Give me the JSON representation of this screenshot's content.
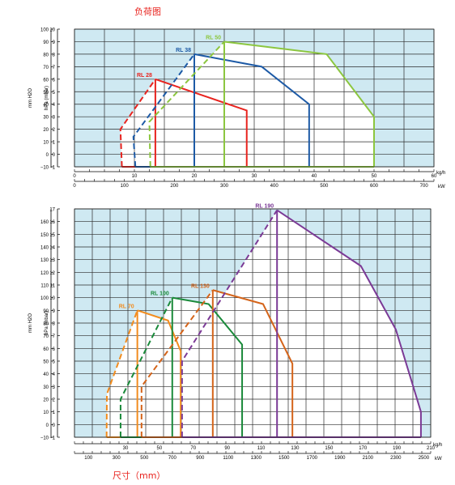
{
  "headings": {
    "top": "负荷图",
    "bottom": "尺寸（mm）"
  },
  "chart_data": [
    {
      "type": "line",
      "background": "#cfe9f2",
      "series_lines_dashed_on_left_boundary": true,
      "left_axis_1": {
        "label": "mm H2O",
        "ticks": [
          "−10",
          "0",
          "10",
          "20",
          "30",
          "40",
          "50",
          "60",
          "70",
          "80",
          "90",
          "100"
        ],
        "range": [
          -10,
          100
        ]
      },
      "left_axis_2": {
        "label": "hPa (mbar)",
        "ticks": [
          "−1",
          "0",
          "1",
          "2",
          "3",
          "4",
          "5",
          "6",
          "7",
          "8",
          "9",
          "10"
        ],
        "range": [
          -1,
          10
        ]
      },
      "bottom_axis_1": {
        "unit": "kg/h",
        "ticks": [
          "0",
          "10",
          "20",
          "30",
          "40",
          "50",
          "60"
        ]
      },
      "bottom_axis_2": {
        "unit": "kW",
        "ticks": [
          "0",
          "100",
          "200",
          "300",
          "400",
          "500",
          "600",
          "700"
        ],
        "range": [
          0,
          720
        ]
      },
      "series": [
        {
          "name": "RL 28",
          "color": "#e8231e",
          "points_kw_hpa": [
            [
              95,
              -1
            ],
            [
              92,
              2
            ],
            [
              162,
              6
            ],
            [
              345,
              3.5
            ],
            [
              345,
              -1
            ]
          ],
          "inner_line_kw": 162
        },
        {
          "name": "RL 38",
          "color": "#1d5aa6",
          "points_kw_hpa": [
            [
              122,
              -1
            ],
            [
              118,
              1.4
            ],
            [
              240,
              8
            ],
            [
              375,
              7
            ],
            [
              470,
              4
            ],
            [
              470,
              -1
            ]
          ],
          "inner_line_kw": 240
        },
        {
          "name": "RL 50",
          "color": "#8cc63f",
          "points_kw_hpa": [
            [
              152,
              -1
            ],
            [
              150,
              2.6
            ],
            [
              300,
              9
            ],
            [
              505,
              8
            ],
            [
              600,
              3
            ],
            [
              600,
              -1
            ]
          ],
          "inner_line_kw": 300
        }
      ]
    },
    {
      "type": "line",
      "background": "#cfe9f2",
      "series_lines_dashed_on_left_boundary": true,
      "left_axis_1": {
        "label": "mm H2O",
        "ticks": [
          "−10",
          "0",
          "10",
          "20",
          "30",
          "40",
          "50",
          "60",
          "70",
          "80",
          "90",
          "100",
          "110",
          "120",
          "130",
          "140",
          "150",
          "160"
        ]
      },
      "left_axis_2": {
        "label": "hPa (mbar)",
        "ticks": [
          "−1",
          "0",
          "1",
          "2",
          "3",
          "4",
          "5",
          "6",
          "7",
          "8",
          "9",
          "10",
          "11",
          "12",
          "13",
          "14",
          "15",
          "16",
          "17"
        ],
        "range": [
          -1,
          17
        ]
      },
      "bottom_axis_1": {
        "unit": "kg/h",
        "ticks": [
          "30",
          "50",
          "70",
          "90",
          "110",
          "130",
          "150",
          "170",
          "190",
          "210"
        ]
      },
      "bottom_axis_2": {
        "unit": "kW",
        "ticks": [
          "100",
          "300",
          "500",
          "700",
          "900",
          "1100",
          "1300",
          "1500",
          "1700",
          "1900",
          "2100",
          "2300",
          "2500"
        ],
        "range": [
          0,
          2550
        ]
      },
      "series": [
        {
          "name": "RL 70",
          "color": "#f28c1e",
          "points_kw_hpa": [
            [
              230,
              -1
            ],
            [
              232,
              2.4
            ],
            [
              450,
              9
            ],
            [
              670,
              8.2
            ],
            [
              760,
              5.8
            ],
            [
              760,
              -1
            ]
          ],
          "inner_line_kw": 450
        },
        {
          "name": "RL 100",
          "color": "#1a8a3a",
          "points_kw_hpa": [
            [
              330,
              -1
            ],
            [
              330,
              2
            ],
            [
              700,
              10
            ],
            [
              960,
              9.5
            ],
            [
              1200,
              6.3
            ],
            [
              1200,
              -1
            ]
          ],
          "inner_line_kw": 700
        },
        {
          "name": "RL 130",
          "color": "#d4641a",
          "points_kw_hpa": [
            [
              480,
              -1
            ],
            [
              480,
              3
            ],
            [
              990,
              10.6
            ],
            [
              1350,
              9.5
            ],
            [
              1560,
              4.8
            ],
            [
              1560,
              -1
            ]
          ],
          "inner_line_kw": 990
        },
        {
          "name": "RL 190",
          "color": "#7b3a96",
          "points_kw_hpa": [
            [
              770,
              -1
            ],
            [
              770,
              5
            ],
            [
              1450,
              16.9
            ],
            [
              2050,
              12.5
            ],
            [
              2300,
              7.5
            ],
            [
              2480,
              1
            ],
            [
              2480,
              -1
            ]
          ],
          "inner_line_kw": 1450
        }
      ]
    }
  ]
}
